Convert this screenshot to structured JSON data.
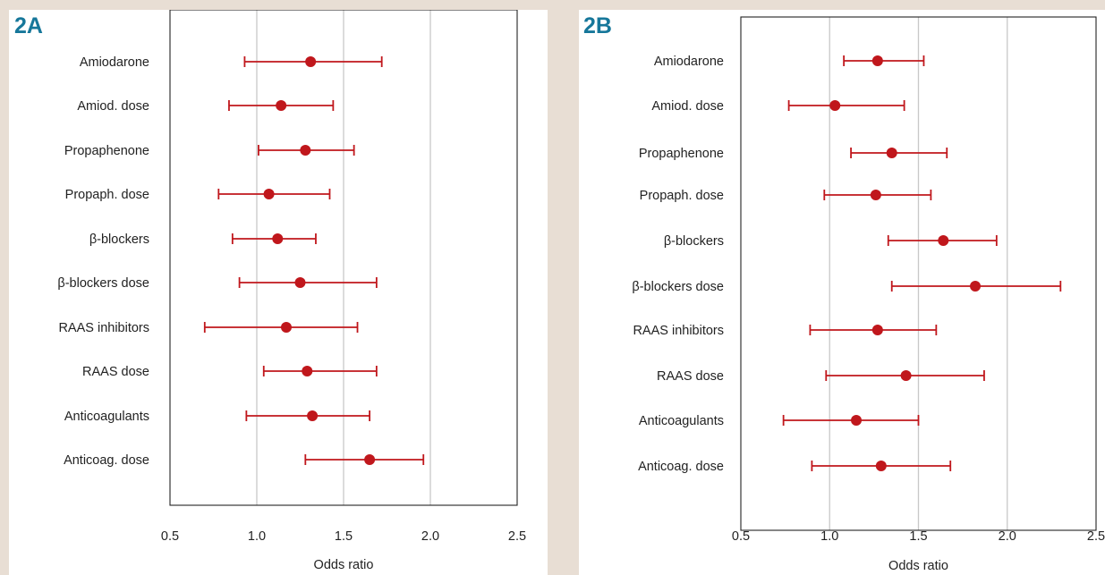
{
  "chart_data": [
    {
      "panel_label": "2A",
      "type": "forest",
      "xlabel": "Odds ratio",
      "xlim": [
        0.5,
        2.5
      ],
      "xticks": [
        "0.5",
        "1.0",
        "1.5",
        "2.0",
        "2.5"
      ],
      "grid": "vertical",
      "marker_color": "#c0171c",
      "categories": [
        "Amiodarone",
        "Amiod. dose",
        "Propaphenone",
        "Propaph. dose",
        "β-blockers",
        "β-blockers dose",
        "RAAS inhibitors",
        "RAAS dose",
        "Anticoagulants",
        "Anticoag. dose"
      ],
      "points": [
        {
          "or": 1.31,
          "ci_low": 0.93,
          "ci_high": 1.72
        },
        {
          "or": 1.14,
          "ci_low": 0.84,
          "ci_high": 1.44
        },
        {
          "or": 1.28,
          "ci_low": 1.01,
          "ci_high": 1.56
        },
        {
          "or": 1.07,
          "ci_low": 0.78,
          "ci_high": 1.42
        },
        {
          "or": 1.12,
          "ci_low": 0.86,
          "ci_high": 1.34
        },
        {
          "or": 1.25,
          "ci_low": 0.9,
          "ci_high": 1.69
        },
        {
          "or": 1.17,
          "ci_low": 0.7,
          "ci_high": 1.58
        },
        {
          "or": 1.29,
          "ci_low": 1.04,
          "ci_high": 1.69
        },
        {
          "or": 1.32,
          "ci_low": 0.94,
          "ci_high": 1.65
        },
        {
          "or": 1.65,
          "ci_low": 1.28,
          "ci_high": 1.96
        }
      ]
    },
    {
      "panel_label": "2B",
      "type": "forest",
      "xlabel": "Odds ratio",
      "xlim": [
        0.5,
        2.5
      ],
      "xticks": [
        "0.5",
        "1.0",
        "1.5",
        "2.0",
        "2.5"
      ],
      "grid": "vertical",
      "marker_color": "#c0171c",
      "categories": [
        "Amiodarone",
        "Amiod. dose",
        "Propaphenone",
        "Propaph. dose",
        "β-blockers",
        "β-blockers dose",
        "RAAS inhibitors",
        "RAAS dose",
        "Anticoagulants",
        "Anticoag. dose"
      ],
      "points": [
        {
          "or": 1.27,
          "ci_low": 1.08,
          "ci_high": 1.53
        },
        {
          "or": 1.03,
          "ci_low": 0.77,
          "ci_high": 1.42
        },
        {
          "or": 1.35,
          "ci_low": 1.12,
          "ci_high": 1.66
        },
        {
          "or": 1.26,
          "ci_low": 0.97,
          "ci_high": 1.57
        },
        {
          "or": 1.64,
          "ci_low": 1.33,
          "ci_high": 1.94
        },
        {
          "or": 1.82,
          "ci_low": 1.35,
          "ci_high": 2.3
        },
        {
          "or": 1.27,
          "ci_low": 0.89,
          "ci_high": 1.6
        },
        {
          "or": 1.43,
          "ci_low": 0.98,
          "ci_high": 1.87
        },
        {
          "or": 1.15,
          "ci_low": 0.74,
          "ci_high": 1.5
        },
        {
          "or": 1.29,
          "ci_low": 0.9,
          "ci_high": 1.68
        }
      ]
    }
  ]
}
